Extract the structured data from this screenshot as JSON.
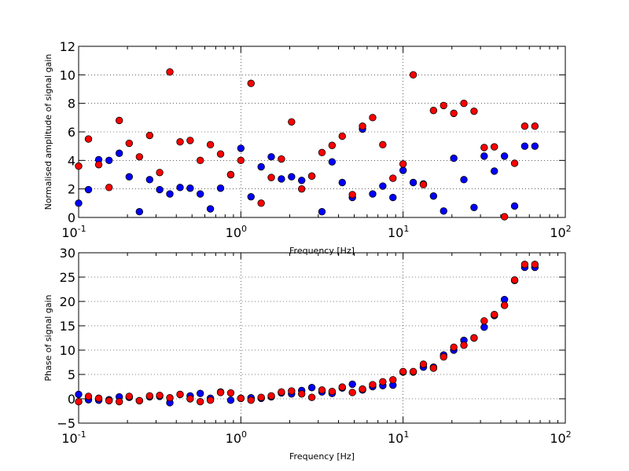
{
  "chart_data": [
    {
      "type": "scatter",
      "xscale": "log",
      "xlim": [
        0.1,
        100
      ],
      "ylim": [
        0,
        12
      ],
      "grid": true,
      "xlabel": "Frequency [Hz]",
      "ylabel": "Normalised amplitude of signal gain",
      "xticks": [
        "10",
        "10",
        "10",
        "10"
      ],
      "xtick_exponents": [
        "-1",
        "0",
        "1",
        "2"
      ],
      "yticks": [
        "0",
        "2",
        "4",
        "6",
        "8",
        "10",
        "12"
      ],
      "ytick_values": [
        0,
        2,
        4,
        6,
        8,
        10,
        12
      ],
      "series": [
        {
          "color": "#0000ff",
          "x": [
            0.1,
            0.115,
            0.133,
            0.154,
            0.178,
            0.205,
            0.237,
            0.274,
            0.316,
            0.365,
            0.422,
            0.487,
            0.562,
            0.649,
            0.75,
            0.866,
            1.0,
            1.155,
            1.334,
            1.54,
            1.778,
            2.054,
            2.371,
            2.738,
            3.162,
            3.652,
            4.217,
            4.87,
            5.623,
            6.494,
            7.499,
            8.66,
            10.0,
            11.55,
            13.34,
            15.4,
            17.78,
            20.54,
            23.71,
            27.38,
            31.62,
            36.52,
            42.17,
            48.7,
            56.23,
            64.94
          ],
          "y": [
            1.0,
            1.95,
            4.05,
            4.0,
            4.5,
            2.85,
            0.4,
            2.65,
            1.95,
            1.65,
            2.1,
            2.05,
            1.65,
            0.6,
            2.05,
            3.0,
            4.85,
            1.45,
            3.55,
            4.25,
            2.7,
            2.85,
            2.6,
            2.9,
            0.4,
            3.9,
            2.45,
            1.4,
            6.2,
            1.65,
            2.2,
            1.4,
            3.3,
            2.45,
            2.35,
            1.5,
            0.45,
            4.15,
            2.65,
            0.7,
            4.3,
            3.25,
            4.3,
            0.8,
            5.0,
            5.0
          ]
        },
        {
          "color": "#ff0000",
          "x": [
            0.1,
            0.115,
            0.133,
            0.154,
            0.178,
            0.205,
            0.237,
            0.274,
            0.316,
            0.365,
            0.422,
            0.487,
            0.562,
            0.649,
            0.75,
            0.866,
            1.0,
            1.155,
            1.334,
            1.54,
            1.778,
            2.054,
            2.371,
            2.738,
            3.162,
            3.652,
            4.217,
            4.87,
            5.623,
            6.494,
            7.499,
            8.66,
            10.0,
            11.55,
            13.34,
            15.4,
            17.78,
            20.54,
            23.71,
            27.38,
            31.62,
            36.52,
            42.17,
            48.7,
            56.23,
            64.94
          ],
          "y": [
            3.6,
            5.5,
            3.7,
            2.1,
            6.8,
            5.2,
            4.25,
            5.75,
            3.15,
            10.2,
            5.3,
            5.4,
            4.0,
            5.1,
            4.45,
            3.0,
            4.0,
            9.4,
            1.0,
            2.8,
            4.1,
            6.7,
            2.0,
            2.9,
            4.55,
            5.05,
            5.7,
            1.6,
            6.4,
            7.0,
            5.1,
            2.75,
            3.75,
            10.0,
            2.3,
            7.5,
            7.85,
            7.3,
            8.0,
            7.45,
            4.9,
            4.95,
            0.05,
            3.8,
            6.4,
            6.4
          ]
        }
      ]
    },
    {
      "type": "scatter",
      "xscale": "log",
      "xlim": [
        0.1,
        100
      ],
      "ylim": [
        -5,
        30
      ],
      "grid": true,
      "xlabel": "Frequency [Hz]",
      "ylabel": "Phase of signal gain",
      "xticks": [
        "10",
        "10",
        "10",
        "10"
      ],
      "xtick_exponents": [
        "-1",
        "0",
        "1",
        "2"
      ],
      "yticks": [
        "−5",
        "0",
        "5",
        "10",
        "15",
        "20",
        "25",
        "30"
      ],
      "ytick_values": [
        -5,
        0,
        5,
        10,
        15,
        20,
        25,
        30
      ],
      "series": [
        {
          "color": "#0000ff",
          "x": [
            0.1,
            0.115,
            0.133,
            0.154,
            0.178,
            0.205,
            0.237,
            0.274,
            0.316,
            0.365,
            0.422,
            0.487,
            0.562,
            0.649,
            0.75,
            0.866,
            1.0,
            1.155,
            1.334,
            1.54,
            1.778,
            2.054,
            2.371,
            2.738,
            3.162,
            3.652,
            4.217,
            4.87,
            5.623,
            6.494,
            7.499,
            8.66,
            10.0,
            11.55,
            13.34,
            15.4,
            17.78,
            20.54,
            23.71,
            27.38,
            31.62,
            36.52,
            42.17,
            48.7,
            56.23,
            64.94
          ],
          "y": [
            0.9,
            -0.2,
            -0.3,
            -0.2,
            0.4,
            0.3,
            -0.4,
            0.4,
            0.5,
            -0.8,
            0.9,
            0.6,
            1.1,
            0.1,
            1.4,
            -0.3,
            0.1,
            0.2,
            0.1,
            0.4,
            1.2,
            1.0,
            1.7,
            2.3,
            1.4,
            1.1,
            2.2,
            3.0,
            1.8,
            2.5,
            2.7,
            2.8,
            5.5,
            5.5,
            6.5,
            6.5,
            9.0,
            10.0,
            12.0,
            12.5,
            14.7,
            17.1,
            20.4,
            24.3,
            27.0,
            27.0
          ]
        },
        {
          "color": "#ff0000",
          "x": [
            0.1,
            0.115,
            0.133,
            0.154,
            0.178,
            0.205,
            0.237,
            0.274,
            0.316,
            0.365,
            0.422,
            0.487,
            0.562,
            0.649,
            0.75,
            0.866,
            1.0,
            1.155,
            1.334,
            1.54,
            1.778,
            2.054,
            2.371,
            2.738,
            3.162,
            3.652,
            4.217,
            4.87,
            5.623,
            6.494,
            7.499,
            8.66,
            10.0,
            11.55,
            13.34,
            15.4,
            17.78,
            20.54,
            23.71,
            27.38,
            31.62,
            36.52,
            42.17,
            48.7,
            56.23,
            64.94
          ],
          "y": [
            -0.6,
            0.5,
            0.1,
            -0.4,
            -0.6,
            0.5,
            -0.4,
            0.6,
            0.7,
            0.2,
            0.9,
            0.0,
            -0.6,
            -0.3,
            1.3,
            1.2,
            0.1,
            -0.3,
            0.3,
            0.6,
            1.4,
            1.6,
            1.0,
            0.3,
            1.8,
            1.5,
            2.4,
            1.3,
            2.0,
            2.9,
            3.5,
            3.9,
            5.6,
            5.6,
            7.1,
            6.3,
            8.6,
            10.6,
            11.0,
            12.5,
            16.0,
            17.3,
            19.2,
            24.4,
            27.6,
            27.6
          ]
        }
      ]
    }
  ]
}
